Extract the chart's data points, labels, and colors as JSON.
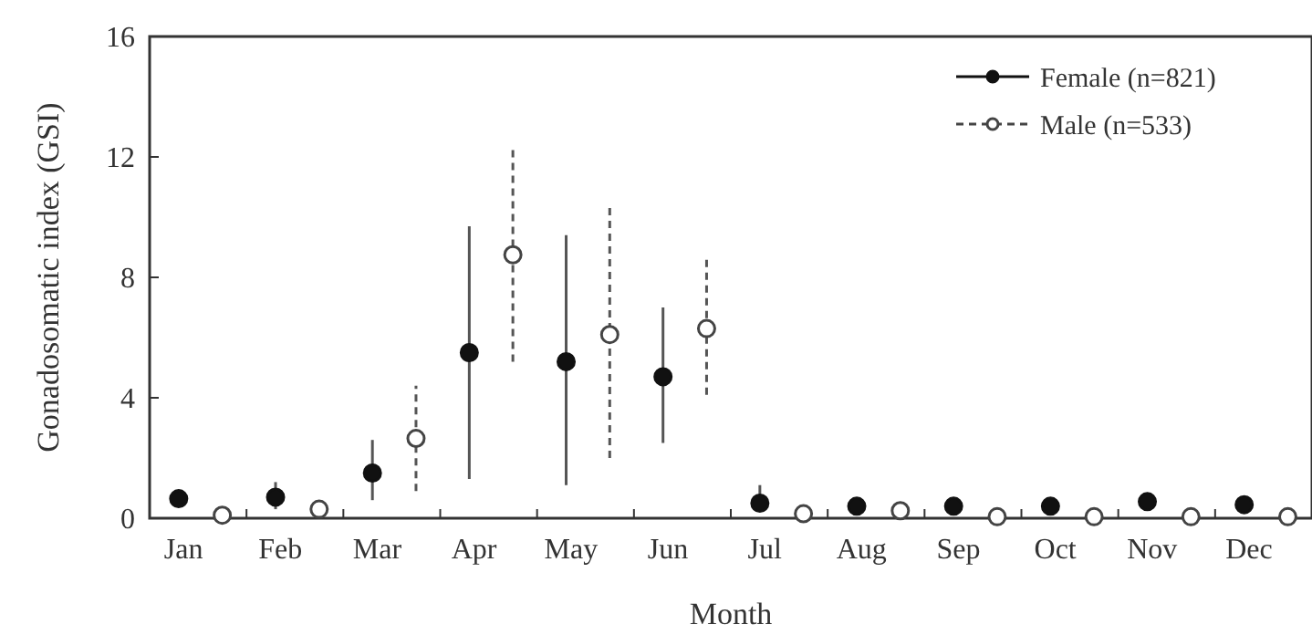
{
  "chart_data": {
    "type": "scatter",
    "xlabel": "Month",
    "ylabel": "Gonadosomatic index (GSI)",
    "categories": [
      "Jan",
      "Feb",
      "Mar",
      "Apr",
      "May",
      "Jun",
      "Jul",
      "Aug",
      "Sep",
      "Oct",
      "Nov",
      "Dec"
    ],
    "ylim": [
      0,
      16
    ],
    "yticks": [
      0,
      4,
      8,
      12,
      16
    ],
    "grid": false,
    "legend": "top right",
    "series": [
      {
        "name": "Female (n=821)",
        "color": "#111111",
        "marker": "circle",
        "line_style": "solid",
        "values": [
          0.65,
          0.7,
          1.5,
          5.5,
          5.2,
          4.7,
          0.5,
          0.4,
          0.4,
          0.4,
          0.55,
          0.45
        ],
        "errors": [
          null,
          [
            0.3,
            1.2
          ],
          [
            0.6,
            2.6
          ],
          [
            1.3,
            9.7
          ],
          [
            1.1,
            9.4
          ],
          [
            2.5,
            7.0
          ],
          [
            0.3,
            1.1
          ],
          null,
          null,
          null,
          null,
          null
        ]
      },
      {
        "name": "Male (n=533)",
        "color": "#444444",
        "marker": "circle",
        "line_style": "dashed",
        "values": [
          0.1,
          0.3,
          2.65,
          8.75,
          6.1,
          6.3,
          0.15,
          0.25,
          0.05,
          0.05,
          0.05,
          0.05
        ],
        "errors": [
          null,
          [
            0.1,
            0.6
          ],
          [
            0.9,
            4.4
          ],
          [
            5.2,
            12.4
          ],
          [
            2.0,
            10.3
          ],
          [
            4.1,
            8.6
          ],
          null,
          null,
          null,
          null,
          null,
          null
        ]
      }
    ]
  }
}
